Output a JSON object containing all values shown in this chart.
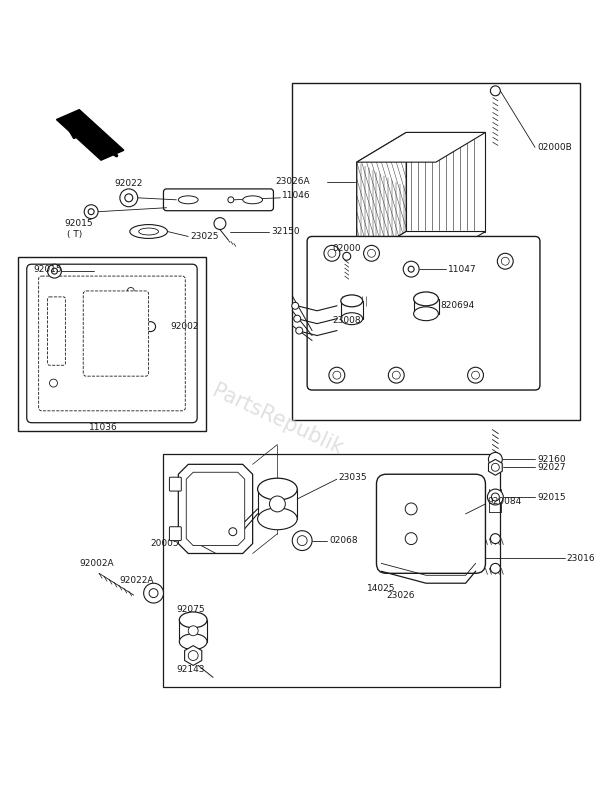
{
  "bg_color": "#ffffff",
  "line_color": "#1a1a1a",
  "watermark": "PartsRepublik",
  "labels": {
    "arrow_top_left": true,
    "bracket": "11046",
    "washer_a": "92022",
    "washer_b": "92015",
    "bolt_a": "32150",
    "stay": "23025",
    "note_t": "( T)",
    "plate": "11036",
    "plate_washer": "92015",
    "plate_screw": "92002",
    "lens_label": "23026A",
    "screw_top": "02000B",
    "socket": "23008",
    "washer_c": "11047",
    "bulb_socket": "820694",
    "screw_d": "02000",
    "bracket2": "20005",
    "stay2": "23035",
    "bulb": "02068",
    "lens2": "14025",
    "lens3": "23026",
    "screw_e": "920084",
    "side_label": "23016",
    "bolt_b": "92002A",
    "washer_d": "92022A",
    "collar": "92075",
    "nut": "92143",
    "spacer": "92160",
    "nut2": "92027",
    "washer_e": "92015"
  }
}
